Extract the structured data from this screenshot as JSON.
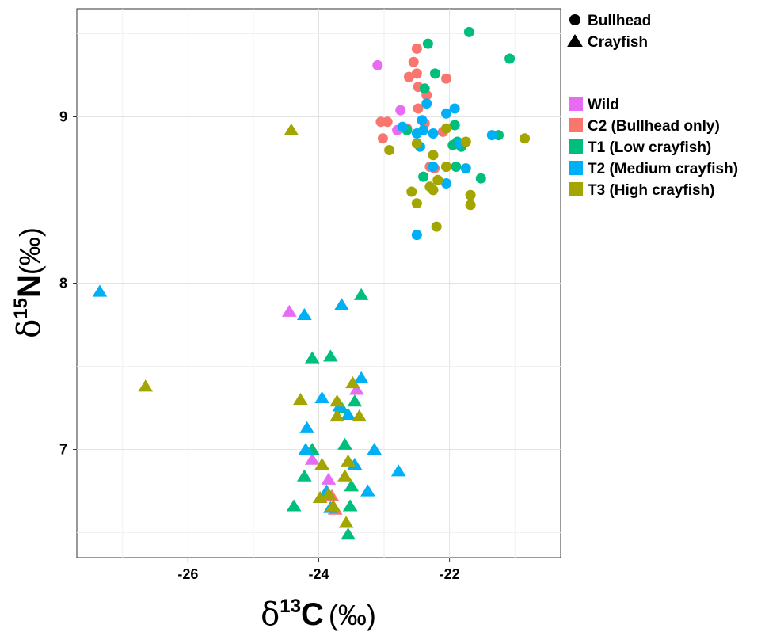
{
  "chart_data": {
    "type": "scatter",
    "title": "",
    "xlabel": {
      "delta": "δ",
      "sup": "13",
      "element": "C",
      "unit": "(‰)"
    },
    "ylabel": {
      "delta": "δ",
      "sup": "15",
      "element": "N",
      "unit": "(‰)"
    },
    "xlim": [
      -27.7,
      -20.3
    ],
    "ylim": [
      6.35,
      9.65
    ],
    "x_ticks": [
      -26,
      -24,
      -22
    ],
    "y_ticks": [
      7,
      8,
      9
    ],
    "x_tick_labels": [
      "-26",
      "-24",
      "-22"
    ],
    "y_tick_labels": [
      "7",
      "8",
      "9"
    ],
    "grid": true,
    "legend_placement": "right",
    "shape_legend": [
      {
        "label": "Bullhead",
        "shape": "circle"
      },
      {
        "label": "Crayfish",
        "shape": "triangle"
      }
    ],
    "color_legend": [
      {
        "key": "wild",
        "label": "Wild",
        "color": "#E76BF3"
      },
      {
        "key": "c2",
        "label": "C2 (Bullhead only)",
        "color": "#F8766D"
      },
      {
        "key": "t1",
        "label": "T1 (Low crayfish)",
        "color": "#00BF7D"
      },
      {
        "key": "t2",
        "label": "T2 (Medium crayfish)",
        "color": "#00B0F6"
      },
      {
        "key": "t3",
        "label": "T3 (High crayfish)",
        "color": "#A3A500"
      }
    ],
    "series": [
      {
        "group": "wild",
        "species": "Bullhead",
        "points": [
          [
            -23.1,
            9.31
          ],
          [
            -22.75,
            9.04
          ],
          [
            -22.8,
            8.92
          ]
        ]
      },
      {
        "group": "wild",
        "species": "Crayfish",
        "points": [
          [
            -24.45,
            7.83
          ],
          [
            -23.42,
            7.36
          ],
          [
            -24.1,
            6.94
          ],
          [
            -23.85,
            6.82
          ]
        ]
      },
      {
        "group": "c2",
        "species": "Bullhead",
        "points": [
          [
            -22.5,
            9.41
          ],
          [
            -22.55,
            9.33
          ],
          [
            -22.5,
            9.26
          ],
          [
            -22.62,
            9.24
          ],
          [
            -22.05,
            9.23
          ],
          [
            -22.48,
            9.18
          ],
          [
            -22.35,
            9.13
          ],
          [
            -22.48,
            9.05
          ],
          [
            -23.05,
            8.97
          ],
          [
            -22.95,
            8.97
          ],
          [
            -22.38,
            8.96
          ],
          [
            -22.65,
            8.93
          ],
          [
            -23.02,
            8.87
          ],
          [
            -22.1,
            8.91
          ],
          [
            -22.3,
            8.7
          ],
          [
            -22.23,
            8.69
          ]
        ]
      },
      {
        "group": "c2",
        "species": "Crayfish",
        "points": [
          [
            -23.8,
            6.72
          ],
          [
            -23.75,
            6.64
          ]
        ]
      },
      {
        "group": "t1",
        "species": "Bullhead",
        "points": [
          [
            -21.7,
            9.51
          ],
          [
            -22.33,
            9.44
          ],
          [
            -21.08,
            9.35
          ],
          [
            -22.22,
            9.26
          ],
          [
            -22.38,
            9.17
          ],
          [
            -21.92,
            8.95
          ],
          [
            -22.65,
            8.92
          ],
          [
            -21.25,
            8.89
          ],
          [
            -21.88,
            8.85
          ],
          [
            -21.95,
            8.83
          ],
          [
            -21.82,
            8.82
          ],
          [
            -22.4,
            8.64
          ],
          [
            -22.05,
            8.7
          ],
          [
            -21.9,
            8.7
          ],
          [
            -21.52,
            8.63
          ]
        ]
      },
      {
        "group": "t1",
        "species": "Crayfish",
        "points": [
          [
            -23.35,
            7.93
          ],
          [
            -23.82,
            7.56
          ],
          [
            -24.1,
            7.55
          ],
          [
            -23.45,
            7.29
          ],
          [
            -23.65,
            7.25
          ],
          [
            -24.1,
            7.0
          ],
          [
            -23.6,
            7.03
          ],
          [
            -24.22,
            6.84
          ],
          [
            -23.5,
            6.78
          ],
          [
            -24.38,
            6.66
          ],
          [
            -23.52,
            6.66
          ],
          [
            -23.55,
            6.49
          ]
        ]
      },
      {
        "group": "t2",
        "species": "Bullhead",
        "points": [
          [
            -22.35,
            9.08
          ],
          [
            -21.92,
            9.05
          ],
          [
            -22.05,
            9.02
          ],
          [
            -22.42,
            8.98
          ],
          [
            -22.72,
            8.94
          ],
          [
            -22.4,
            8.92
          ],
          [
            -22.5,
            8.9
          ],
          [
            -22.25,
            8.9
          ],
          [
            -21.35,
            8.89
          ],
          [
            -22.45,
            8.82
          ],
          [
            -21.85,
            8.84
          ],
          [
            -22.25,
            8.7
          ],
          [
            -21.75,
            8.69
          ],
          [
            -22.05,
            8.6
          ],
          [
            -22.5,
            8.29
          ]
        ]
      },
      {
        "group": "t2",
        "species": "Crayfish",
        "points": [
          [
            -27.35,
            7.95
          ],
          [
            -23.65,
            7.87
          ],
          [
            -24.22,
            7.81
          ],
          [
            -23.35,
            7.43
          ],
          [
            -23.95,
            7.31
          ],
          [
            -23.68,
            7.26
          ],
          [
            -23.55,
            7.21
          ],
          [
            -24.18,
            7.13
          ],
          [
            -24.2,
            7.0
          ],
          [
            -23.15,
            7.0
          ],
          [
            -23.45,
            6.91
          ],
          [
            -22.78,
            6.87
          ],
          [
            -23.88,
            6.75
          ],
          [
            -23.25,
            6.75
          ],
          [
            -23.82,
            6.65
          ]
        ]
      },
      {
        "group": "t3",
        "species": "Bullhead",
        "points": [
          [
            -20.85,
            8.87
          ],
          [
            -21.75,
            8.85
          ],
          [
            -22.5,
            8.84
          ],
          [
            -22.05,
            8.93
          ],
          [
            -22.92,
            8.8
          ],
          [
            -22.25,
            8.77
          ],
          [
            -22.05,
            8.7
          ],
          [
            -22.18,
            8.62
          ],
          [
            -22.3,
            8.58
          ],
          [
            -22.58,
            8.55
          ],
          [
            -22.25,
            8.56
          ],
          [
            -21.68,
            8.53
          ],
          [
            -22.5,
            8.48
          ],
          [
            -21.68,
            8.47
          ],
          [
            -22.2,
            8.34
          ]
        ]
      },
      {
        "group": "t3",
        "species": "Crayfish",
        "points": [
          [
            -24.42,
            8.92
          ],
          [
            -26.65,
            7.38
          ],
          [
            -23.48,
            7.4
          ],
          [
            -24.28,
            7.3
          ],
          [
            -23.72,
            7.29
          ],
          [
            -23.38,
            7.2
          ],
          [
            -23.72,
            7.2
          ],
          [
            -23.55,
            6.93
          ],
          [
            -23.95,
            6.91
          ],
          [
            -23.6,
            6.84
          ],
          [
            -23.85,
            6.73
          ],
          [
            -23.98,
            6.71
          ],
          [
            -23.78,
            6.66
          ],
          [
            -23.58,
            6.56
          ]
        ]
      }
    ]
  }
}
